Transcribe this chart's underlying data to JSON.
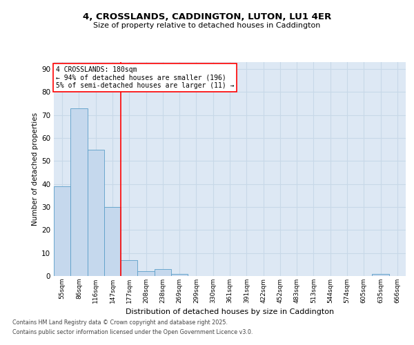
{
  "title1": "4, CROSSLANDS, CADDINGTON, LUTON, LU1 4ER",
  "title2": "Size of property relative to detached houses in Caddington",
  "xlabel": "Distribution of detached houses by size in Caddington",
  "ylabel": "Number of detached properties",
  "categories": [
    "55sqm",
    "86sqm",
    "116sqm",
    "147sqm",
    "177sqm",
    "208sqm",
    "238sqm",
    "269sqm",
    "299sqm",
    "330sqm",
    "361sqm",
    "391sqm",
    "422sqm",
    "452sqm",
    "483sqm",
    "513sqm",
    "544sqm",
    "574sqm",
    "605sqm",
    "635sqm",
    "666sqm"
  ],
  "values": [
    39,
    73,
    55,
    30,
    7,
    2,
    3,
    1,
    0,
    0,
    0,
    0,
    0,
    0,
    0,
    0,
    0,
    0,
    0,
    1,
    0
  ],
  "bar_color": "#c5d8ed",
  "bar_edge_color": "#5a9ec8",
  "grid_color": "#c8d8e8",
  "background_color": "#dde8f4",
  "red_line_index": 4,
  "annotation_text_line1": "4 CROSSLANDS: 180sqm",
  "annotation_text_line2": "← 94% of detached houses are smaller (196)",
  "annotation_text_line3": "5% of semi-detached houses are larger (11) →",
  "ylim": [
    0,
    93
  ],
  "yticks": [
    0,
    10,
    20,
    30,
    40,
    50,
    60,
    70,
    80,
    90
  ],
  "footer_line1": "Contains HM Land Registry data © Crown copyright and database right 2025.",
  "footer_line2": "Contains public sector information licensed under the Open Government Licence v3.0."
}
